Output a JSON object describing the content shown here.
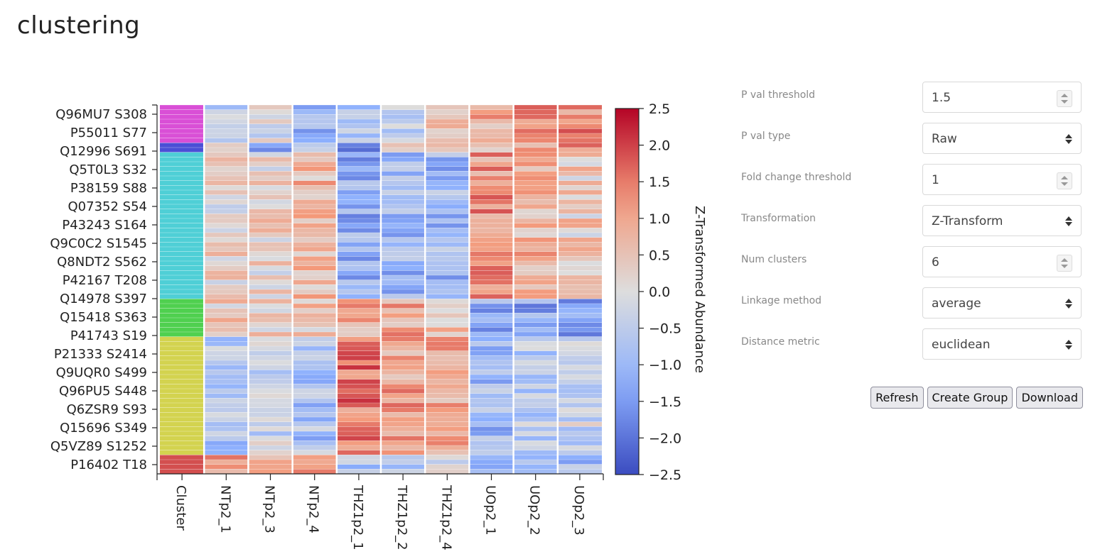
{
  "page": {
    "title": "clustering"
  },
  "controls": {
    "p_val_threshold": {
      "label": "P val threshold",
      "value": "1.5"
    },
    "p_val_type": {
      "label": "P val type",
      "value": "Raw"
    },
    "fold_change_threshold": {
      "label": "Fold change threshold",
      "value": "1"
    },
    "transformation": {
      "label": "Transformation",
      "value": "Z-Transform"
    },
    "num_clusters": {
      "label": "Num clusters",
      "value": "6"
    },
    "linkage_method": {
      "label": "Linkage method",
      "value": "average"
    },
    "distance_metric": {
      "label": "Distance metric",
      "value": "euclidean"
    }
  },
  "buttons": {
    "refresh": "Refresh",
    "create_group": "Create Group",
    "download": "Download"
  },
  "chart_data": {
    "type": "heatmap",
    "columns": [
      "Cluster",
      "NTp2_1",
      "NTp2_3",
      "NTp2_4",
      "THZ1p2_1",
      "THZ1p2_2",
      "THZ1p2_4",
      "UOp2_1",
      "UOp2_2",
      "UOp2_3"
    ],
    "row_tick_labels": [
      "Q96MU7 S308",
      "P55011 S77",
      "Q12996 S691",
      "Q5T0L3 S32",
      "P38159 S88",
      "Q07352 S54",
      "P43243 S164",
      "Q9C0C2 S1545",
      "Q8NDT2 S562",
      "P42167 T208",
      "Q14978 S397",
      "Q15418 S363",
      "P41743 S19",
      "P21333 S2414",
      "Q9UQR0 S499",
      "Q96PU5 S448",
      "Q6ZSR9 S93",
      "Q15696 S349",
      "Q5VZ89 S1252",
      "P16402 T18"
    ],
    "num_rows": 78,
    "clusters": [
      {
        "color": "#d94fd6",
        "rows": 8
      },
      {
        "color": "#4b4fd6",
        "rows": 2
      },
      {
        "color": "#4fcfd6",
        "rows": 31
      },
      {
        "color": "#4fd04f",
        "rows": 8
      },
      {
        "color": "#d3d34f",
        "rows": 25
      },
      {
        "color": "#d34f4f",
        "rows": 4
      }
    ],
    "cluster_means": [
      [
        -0.3,
        -0.2,
        -1.2,
        -0.8,
        -0.3,
        0.4,
        0.9,
        1.4,
        1.3
      ],
      [
        -0.3,
        -1.2,
        -0.8,
        -1.5,
        0.4,
        0.9,
        0.8,
        0.7,
        1.3
      ],
      [
        0.2,
        0.3,
        0.7,
        -1.2,
        -1.0,
        -1.0,
        1.2,
        0.8,
        0.4
      ],
      [
        0.4,
        0.3,
        0.5,
        1.0,
        0.9,
        0.6,
        -1.2,
        -1.3,
        -1.3
      ],
      [
        -0.7,
        -0.4,
        -0.8,
        1.5,
        1.0,
        1.0,
        -1.0,
        -0.5,
        -0.3
      ],
      [
        1.3,
        0.6,
        1.2,
        -0.9,
        -0.5,
        0.0,
        -1.3,
        -0.6,
        -0.8
      ]
    ],
    "colorbar": {
      "label": "Z-Transformed Abundance",
      "min": -2.5,
      "max": 2.5,
      "ticks": [
        "2.5",
        "2.0",
        "1.5",
        "1.0",
        "0.5",
        "0.0",
        "−0.5",
        "−1.0",
        "−1.5",
        "−2.0",
        "−2.5"
      ]
    }
  }
}
